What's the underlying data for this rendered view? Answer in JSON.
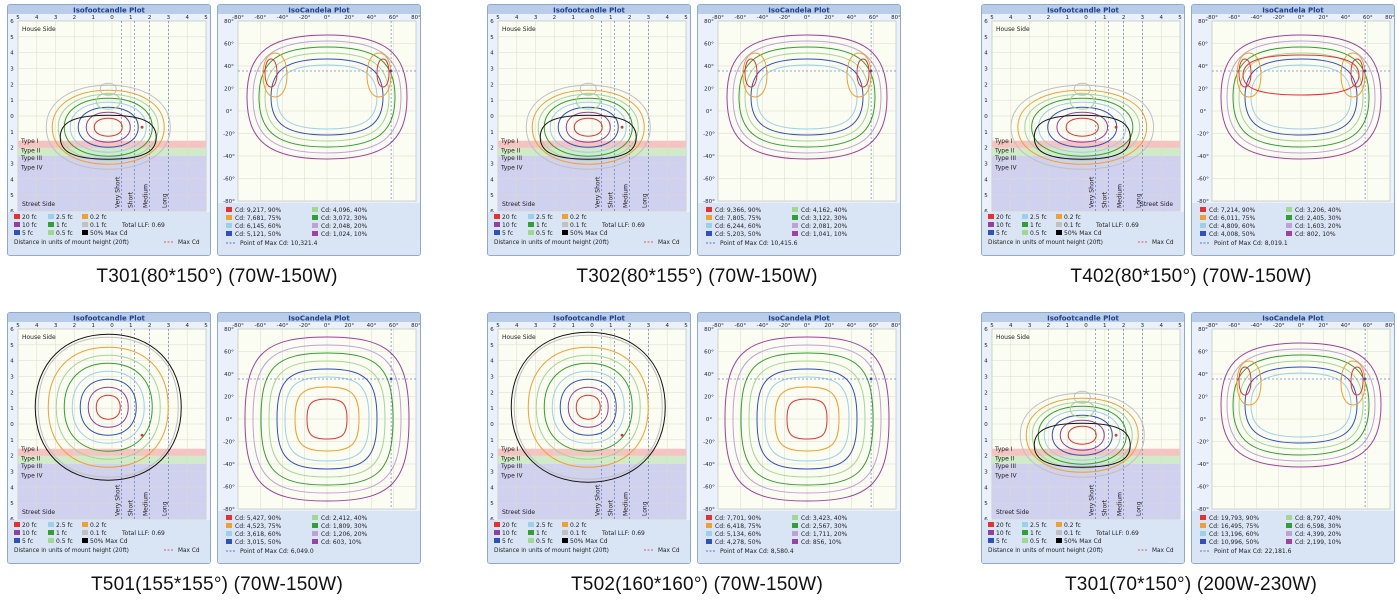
{
  "common": {
    "isofc_title": "Isofootcandle Plot",
    "isocd_title": "IsoCandela Plot",
    "x_ticks_fc": [
      "5",
      "4",
      "3",
      "2",
      "1",
      "0",
      "1",
      "2",
      "3",
      "4",
      "5"
    ],
    "y_ticks_fc": [
      "6",
      "5",
      "4",
      "3",
      "2",
      "1",
      "0",
      "1",
      "2",
      "3",
      "4",
      "5",
      "6"
    ],
    "x_ticks_cd": [
      "-80°",
      "-60°",
      "-40°",
      "-20°",
      "0°",
      "20°",
      "40°",
      "60°",
      "80°"
    ],
    "y_ticks_cd": [
      "80°",
      "60°",
      "40°",
      "20°",
      "0°",
      "-20°",
      "-40°",
      "-60°",
      "-80°"
    ],
    "house_side": "House Side",
    "street_side": "Street Side",
    "types": [
      "Type I",
      "Type II",
      "Type III",
      "Type IV"
    ],
    "mh_labels": [
      "Very Short",
      "Short",
      "Medium",
      "Long"
    ],
    "fc_legend": [
      {
        "label": "20 fc",
        "color": "#e83030"
      },
      {
        "label": "2.5 fc",
        "color": "#9ad0e8"
      },
      {
        "label": "0.2 fc",
        "color": "#f0a030"
      },
      {
        "label": "10 fc",
        "color": "#9040a0"
      },
      {
        "label": "1 fc",
        "color": "#30a030"
      },
      {
        "label": "0.1 fc",
        "color": "#c0c0c0"
      },
      {
        "label": "5 fc",
        "color": "#3050c0"
      },
      {
        "label": "0.5 fc",
        "color": "#a0d890"
      },
      {
        "label": "50% Max Cd",
        "color": "#000000"
      }
    ],
    "total_llf": "Total LLF: 0.69",
    "distance_note": "Distance in units of mount height (20ft)",
    "max_cd_label": "Max Cd",
    "cd_colors": [
      "#e83030",
      "#f0a030",
      "#9ad0e8",
      "#3050c0",
      "#a0d890",
      "#30a030",
      "#c0a0d8",
      "#a040a0"
    ],
    "contour_colors": [
      "#c0c0c0",
      "#f0a030",
      "#a0d890",
      "#30a030",
      "#9ad0e8",
      "#3050c0",
      "#9040a0",
      "#e83030"
    ]
  },
  "charts": [
    {
      "caption": "T301(80*150°) (70W-150W)",
      "cd_legend": [
        "Cd: 9,217, 90%",
        "Cd: 7,681, 75%",
        "Cd: 6,145, 60%",
        "Cd: 5,121, 50%",
        "Cd: 4,096, 40%",
        "Cd: 3,072, 30%",
        "Cd: 2,048, 20%",
        "Cd: 1,024, 10%"
      ],
      "point_max": "Point of Max Cd: 10,321.4"
    },
    {
      "caption": "T302(80*155°) (70W-150W)",
      "cd_legend": [
        "Cd: 9,366, 90%",
        "Cd: 7,805, 75%",
        "Cd: 6,244, 60%",
        "Cd: 5,203, 50%",
        "Cd: 4,162, 40%",
        "Cd: 3,122, 30%",
        "Cd: 2,081, 20%",
        "Cd: 1,041, 10%"
      ],
      "point_max": "Point of Max Cd: 10,415.6"
    },
    {
      "caption": "T402(80*150°) (70W-150W)",
      "cd_legend": [
        "Cd: 7,214, 90%",
        "Cd: 6,011, 75%",
        "Cd: 4,809, 60%",
        "Cd: 4,008, 50%",
        "Cd: 3,206, 40%",
        "Cd: 2,405, 30%",
        "Cd: 1,603, 20%",
        "Cd: 802, 10%"
      ],
      "point_max": "Point of Max Cd: 8,019.1"
    },
    {
      "caption": "T501(155*155°) (70W-150W)",
      "cd_legend": [
        "Cd: 5,427, 90%",
        "Cd: 4,523, 75%",
        "Cd: 3,618, 60%",
        "Cd: 3,015, 50%",
        "Cd: 2,412, 40%",
        "Cd: 1,809, 30%",
        "Cd: 1,206, 20%",
        "Cd: 603, 10%"
      ],
      "point_max": "Point of Max Cd: 6,049.0"
    },
    {
      "caption": "T502(160*160°) (70W-150W)",
      "cd_legend": [
        "Cd: 7,701, 90%",
        "Cd: 6,418, 75%",
        "Cd: 5,134, 60%",
        "Cd: 4,278, 50%",
        "Cd: 3,423, 40%",
        "Cd: 2,567, 30%",
        "Cd: 1,711, 20%",
        "Cd: 856, 10%"
      ],
      "point_max": "Point of Max Cd: 8,580.4"
    },
    {
      "caption": "T301(70*150°) (200W-230W)",
      "cd_legend": [
        "Cd: 19,793, 90%",
        "Cd: 16,495, 75%",
        "Cd: 13,196, 60%",
        "Cd: 10,996, 50%",
        "Cd: 8,797, 40%",
        "Cd: 6,598, 30%",
        "Cd: 4,399, 20%",
        "Cd: 2,199, 10%"
      ],
      "point_max": "Point of Max Cd: 22,181.6"
    }
  ]
}
